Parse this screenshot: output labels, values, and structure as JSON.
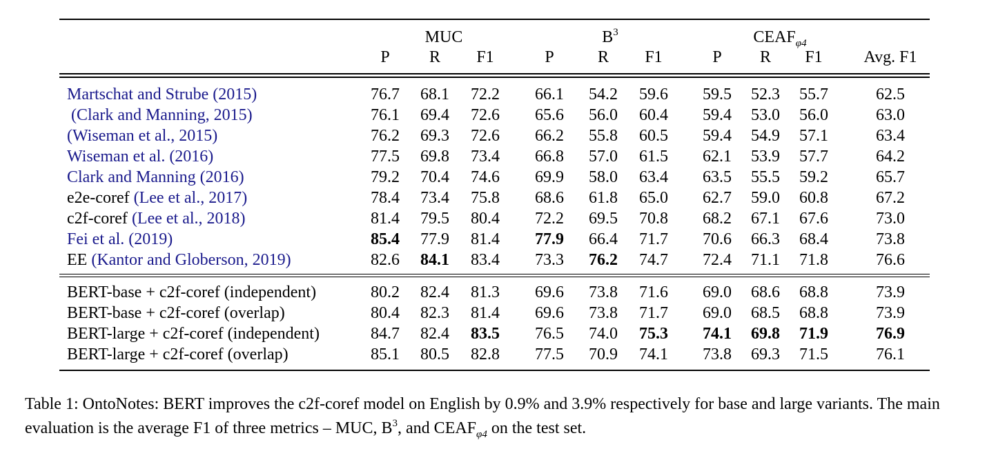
{
  "table": {
    "group_headers": {
      "muc": "MUC",
      "b3_base": "B",
      "b3_sup": "3",
      "ceaf_base": "CEAF",
      "ceaf_sub": "φ4"
    },
    "column_headers": [
      "P",
      "R",
      "F1",
      "P",
      "R",
      "F1",
      "P",
      "R",
      "F1",
      "Avg. F1"
    ],
    "prior_rows": [
      {
        "segments": [
          {
            "text": "Martschat and Strube (2015)",
            "cite": true
          }
        ],
        "values": [
          "76.7",
          "68.1",
          "72.2",
          "66.1",
          "54.2",
          "59.6",
          "59.5",
          "52.3",
          "55.7",
          "62.5"
        ],
        "bold": []
      },
      {
        "segments": [
          {
            "text": " (Clark and Manning, 2015)",
            "cite": true
          }
        ],
        "values": [
          "76.1",
          "69.4",
          "72.6",
          "65.6",
          "56.0",
          "60.4",
          "59.4",
          "53.0",
          "56.0",
          "63.0"
        ],
        "bold": []
      },
      {
        "segments": [
          {
            "text": "(Wiseman et al., 2015)",
            "cite": true
          }
        ],
        "values": [
          "76.2",
          "69.3",
          "72.6",
          "66.2",
          "55.8",
          "60.5",
          "59.4",
          "54.9",
          "57.1",
          "63.4"
        ],
        "bold": []
      },
      {
        "segments": [
          {
            "text": "Wiseman et al. (2016)",
            "cite": true
          }
        ],
        "values": [
          "77.5",
          "69.8",
          "73.4",
          "66.8",
          "57.0",
          "61.5",
          "62.1",
          "53.9",
          "57.7",
          "64.2"
        ],
        "bold": []
      },
      {
        "segments": [
          {
            "text": "Clark and Manning (2016)",
            "cite": true
          }
        ],
        "values": [
          "79.2",
          "70.4",
          "74.6",
          "69.9",
          "58.0",
          "63.4",
          "63.5",
          "55.5",
          "59.2",
          "65.7"
        ],
        "bold": []
      },
      {
        "segments": [
          {
            "text": "e2e-coref ",
            "cite": false
          },
          {
            "text": "(Lee et al., 2017)",
            "cite": true
          }
        ],
        "values": [
          "78.4",
          "73.4",
          "75.8",
          "68.6",
          "61.8",
          "65.0",
          "62.7",
          "59.0",
          "60.8",
          "67.2"
        ],
        "bold": []
      },
      {
        "segments": [
          {
            "text": "c2f-coref ",
            "cite": false
          },
          {
            "text": "(Lee et al., 2018)",
            "cite": true
          }
        ],
        "values": [
          "81.4",
          "79.5",
          "80.4",
          "72.2",
          "69.5",
          "70.8",
          "68.2",
          "67.1",
          "67.6",
          "73.0"
        ],
        "bold": []
      },
      {
        "segments": [
          {
            "text": "Fei et al. (2019)",
            "cite": true
          }
        ],
        "values": [
          "85.4",
          "77.9",
          "81.4",
          "77.9",
          "66.4",
          "71.7",
          "70.6",
          "66.3",
          "68.4",
          "73.8"
        ],
        "bold": [
          0,
          3
        ]
      },
      {
        "segments": [
          {
            "text": "EE ",
            "cite": false
          },
          {
            "text": "(Kantor and Globerson, 2019)",
            "cite": true
          }
        ],
        "values": [
          "82.6",
          "84.1",
          "83.4",
          "73.3",
          "76.2",
          "74.7",
          "72.4",
          "71.1",
          "71.8",
          "76.6"
        ],
        "bold": [
          1,
          4
        ]
      }
    ],
    "bert_rows": [
      {
        "segments": [
          {
            "text": "BERT-base + c2f-coref (independent)",
            "cite": false
          }
        ],
        "values": [
          "80.2",
          "82.4",
          "81.3",
          "69.6",
          "73.8",
          "71.6",
          "69.0",
          "68.6",
          "68.8",
          "73.9"
        ],
        "bold": []
      },
      {
        "segments": [
          {
            "text": "BERT-base + c2f-coref (overlap)",
            "cite": false
          }
        ],
        "values": [
          "80.4",
          "82.3",
          "81.4",
          "69.6",
          "73.8",
          "71.7",
          "69.0",
          "68.5",
          "68.8",
          "73.9"
        ],
        "bold": []
      },
      {
        "segments": [
          {
            "text": "BERT-large + c2f-coref (independent)",
            "cite": false
          }
        ],
        "values": [
          "84.7",
          "82.4",
          "83.5",
          "76.5",
          "74.0",
          "75.3",
          "74.1",
          "69.8",
          "71.9",
          "76.9"
        ],
        "bold": [
          2,
          5,
          6,
          7,
          8,
          9
        ]
      },
      {
        "segments": [
          {
            "text": "BERT-large + c2f-coref (overlap)",
            "cite": false
          }
        ],
        "values": [
          "85.1",
          "80.5",
          "82.8",
          "77.5",
          "70.9",
          "74.1",
          "73.8",
          "69.3",
          "71.5",
          "76.1"
        ],
        "bold": []
      }
    ]
  },
  "caption": {
    "part1": "Table 1: OntoNotes: BERT improves the c2f-coref model on English by 0.9% and 3.9% respectively for base and large variants. The main evaluation is the average F1 of three metrics – MUC, B",
    "sup": "3",
    "part2": ", and CEAF",
    "sub": "φ4",
    "part3": " on the test set."
  }
}
